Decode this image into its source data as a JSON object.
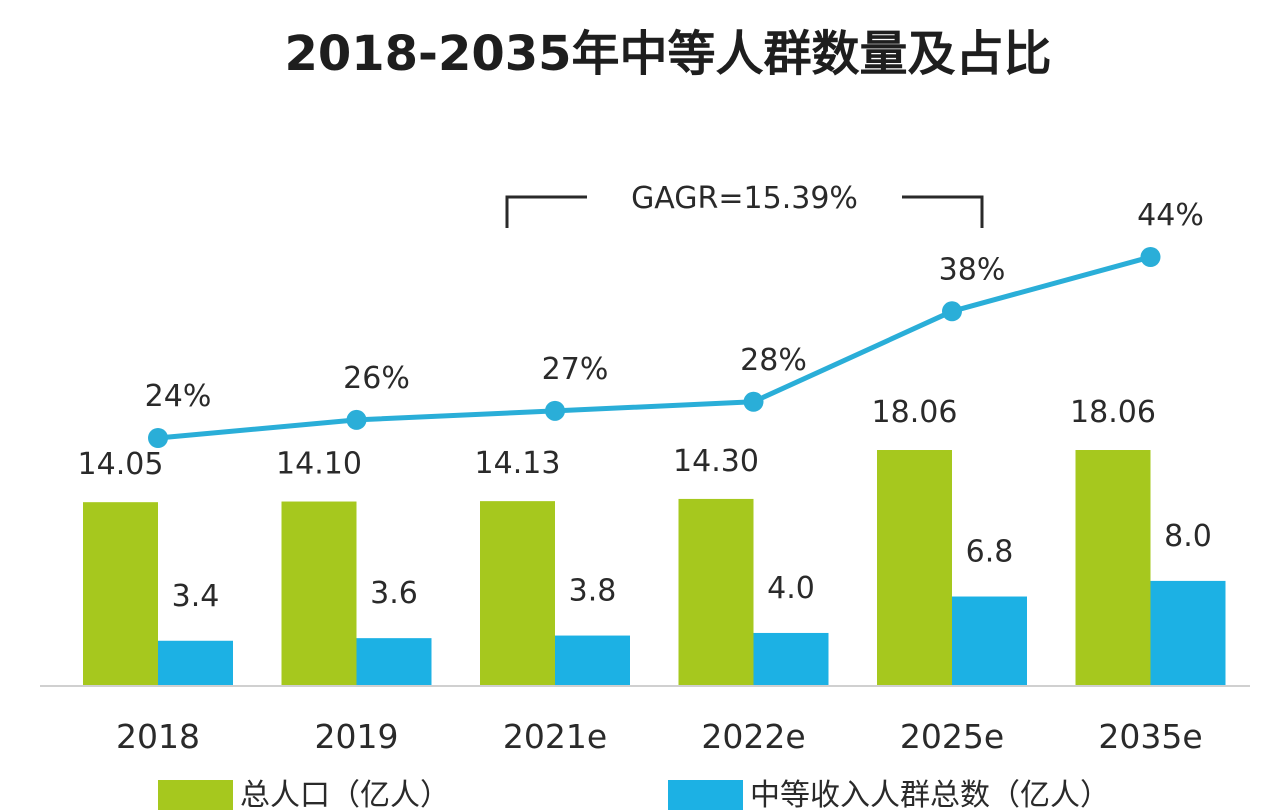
{
  "chart_data": {
    "type": "bar",
    "title": "2018-2035年中等人群数量及占比",
    "categories": [
      "2018",
      "2019",
      "2021e",
      "2022e",
      "2025e",
      "2035e"
    ],
    "series": [
      {
        "name": "总人口（亿人）",
        "type": "bar",
        "color": "#a6c81e",
        "values": [
          14.05,
          14.1,
          14.13,
          14.3,
          18.06,
          18.06
        ],
        "labels": [
          "14.05",
          "14.10",
          "14.13",
          "14.30",
          "18.06",
          "18.06"
        ]
      },
      {
        "name": "中等收入人群总数（亿人）",
        "type": "bar",
        "color": "#1cb1e4",
        "values": [
          3.4,
          3.6,
          3.8,
          4.0,
          6.8,
          8.0
        ],
        "labels": [
          "3.4",
          "3.6",
          "3.8",
          "4.0",
          "6.8",
          "8.0"
        ]
      },
      {
        "type": "line",
        "color": "#2aaed8",
        "values": [
          24,
          26,
          27,
          28,
          38,
          44
        ],
        "labels": [
          "24%",
          "26%",
          "27%",
          "28%",
          "38%",
          "44%"
        ]
      }
    ],
    "annotation": {
      "text": "GAGR=15.39%",
      "from_category": "2021e",
      "to_category": "2025e"
    },
    "bar_ylim": [
      0,
      22
    ],
    "line_ylim": [
      0,
      60
    ],
    "grid": false,
    "legend_position": "bottom"
  }
}
